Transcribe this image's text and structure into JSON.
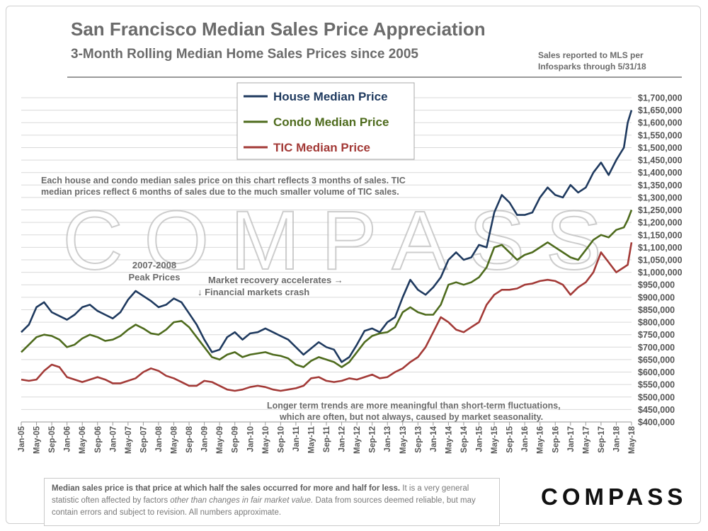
{
  "header": {
    "title": "San Francisco Median Sales Price Appreciation",
    "subtitle": "3-Month Rolling Median Home Sales Prices since 2005",
    "source_line1": "Sales reported to MLS per",
    "source_line2": "Infosparks through 5/31/18"
  },
  "annotations": {
    "note_line1": "Each house and condo median sales price on this chart reflects 3 months of sales. TIC",
    "note_line2": "median prices reflect 6 months of sales due to the much smaller volume of TIC sales.",
    "peak_line1": "2007-2008",
    "peak_line2": "Peak Prices",
    "recovery": "Market recovery accelerates →",
    "crash": "↓ Financial markets crash",
    "trend_line1": "Longer term trends are more meaningful than short-term fluctuations,",
    "trend_line2": "which are often, but not always, caused by market seasonality."
  },
  "watermark": "COMPASS",
  "footer": {
    "bold_text": "Median sales price is that price at which half the sales occurred for more and half for less.",
    "text_a": " It is a very general statistic often affected by factors ",
    "italic_text": "other than changes in fair market value.",
    "text_b": " Data from sources deemed reliable, but may contain errors and subject to revision. All numbers approximate."
  },
  "logo": "COMPASS",
  "chart_data": {
    "type": "line",
    "ylim": [
      400000,
      1700000
    ],
    "yticks": [
      "$400,000",
      "$450,000",
      "$500,000",
      "$550,000",
      "$600,000",
      "$650,000",
      "$700,000",
      "$750,000",
      "$800,000",
      "$850,000",
      "$900,000",
      "$950,000",
      "$1,000,000",
      "$1,050,000",
      "$1,100,000",
      "$1,150,000",
      "$1,200,000",
      "$1,250,000",
      "$1,300,000",
      "$1,350,000",
      "$1,400,000",
      "$1,450,000",
      "$1,500,000",
      "$1,550,000",
      "$1,600,000",
      "$1,650,000",
      "$1,700,000"
    ],
    "xticks": [
      "Jan-05",
      "May-05",
      "Sep-05",
      "Jan-06",
      "May-06",
      "Sep-06",
      "Jan-07",
      "May-07",
      "Sep-07",
      "Jan-08",
      "May-08",
      "Sep-08",
      "Jan-09",
      "May-09",
      "Sep-09",
      "Jan-10",
      "May-10",
      "Sep-10",
      "Jan-11",
      "May-11",
      "Sep-11",
      "Jan-12",
      "May-12",
      "Sep-12",
      "Jan-13",
      "May-13",
      "Sep-13",
      "Jan-14",
      "May-14",
      "Sep-14",
      "Jan-15",
      "May-15",
      "Sep-15",
      "Jan-16",
      "May-16",
      "Sep-16",
      "Jan-17",
      "May-17",
      "Sep-17",
      "Jan-18",
      "May-18"
    ],
    "grid": true,
    "legend_position": "top-center",
    "series": [
      {
        "name": "House Median Price",
        "color": "#1f3a5f",
        "x": [
          "Jan-05",
          "Mar-05",
          "May-05",
          "Jul-05",
          "Sep-05",
          "Nov-05",
          "Jan-06",
          "Mar-06",
          "May-06",
          "Jul-06",
          "Sep-06",
          "Nov-06",
          "Jan-07",
          "Mar-07",
          "May-07",
          "Jul-07",
          "Sep-07",
          "Nov-07",
          "Jan-08",
          "Mar-08",
          "May-08",
          "Jul-08",
          "Sep-08",
          "Nov-08",
          "Jan-09",
          "Mar-09",
          "May-09",
          "Jul-09",
          "Sep-09",
          "Nov-09",
          "Jan-10",
          "Mar-10",
          "May-10",
          "Jul-10",
          "Sep-10",
          "Nov-10",
          "Jan-11",
          "Mar-11",
          "May-11",
          "Jul-11",
          "Sep-11",
          "Nov-11",
          "Jan-12",
          "Mar-12",
          "May-12",
          "Jul-12",
          "Sep-12",
          "Nov-12",
          "Jan-13",
          "Mar-13",
          "May-13",
          "Jul-13",
          "Sep-13",
          "Nov-13",
          "Jan-14",
          "Mar-14",
          "May-14",
          "Jul-14",
          "Sep-14",
          "Nov-14",
          "Jan-15",
          "Mar-15",
          "May-15",
          "Jul-15",
          "Sep-15",
          "Nov-15",
          "Jan-16",
          "Mar-16",
          "May-16",
          "Jul-16",
          "Sep-16",
          "Nov-16",
          "Jan-17",
          "Mar-17",
          "May-17",
          "Jul-17",
          "Sep-17",
          "Nov-17",
          "Jan-18",
          "Mar-18",
          "Apr-18",
          "May-18"
        ],
        "values": [
          760000,
          790000,
          860000,
          880000,
          840000,
          825000,
          810000,
          830000,
          860000,
          870000,
          845000,
          830000,
          815000,
          840000,
          890000,
          925000,
          905000,
          885000,
          860000,
          870000,
          895000,
          880000,
          835000,
          790000,
          730000,
          680000,
          690000,
          740000,
          760000,
          730000,
          755000,
          760000,
          775000,
          760000,
          745000,
          730000,
          700000,
          670000,
          695000,
          720000,
          700000,
          690000,
          640000,
          660000,
          710000,
          765000,
          775000,
          760000,
          800000,
          820000,
          900000,
          970000,
          930000,
          910000,
          940000,
          980000,
          1050000,
          1080000,
          1050000,
          1060000,
          1110000,
          1100000,
          1240000,
          1310000,
          1280000,
          1230000,
          1230000,
          1240000,
          1300000,
          1340000,
          1310000,
          1300000,
          1350000,
          1320000,
          1340000,
          1400000,
          1440000,
          1390000,
          1450000,
          1500000,
          1600000,
          1650000
        ]
      },
      {
        "name": "Condo Median Price",
        "color": "#4e6b1d",
        "x": [
          "Jan-05",
          "Mar-05",
          "May-05",
          "Jul-05",
          "Sep-05",
          "Nov-05",
          "Jan-06",
          "Mar-06",
          "May-06",
          "Jul-06",
          "Sep-06",
          "Nov-06",
          "Jan-07",
          "Mar-07",
          "May-07",
          "Jul-07",
          "Sep-07",
          "Nov-07",
          "Jan-08",
          "Mar-08",
          "May-08",
          "Jul-08",
          "Sep-08",
          "Nov-08",
          "Jan-09",
          "Mar-09",
          "May-09",
          "Jul-09",
          "Sep-09",
          "Nov-09",
          "Jan-10",
          "Mar-10",
          "May-10",
          "Jul-10",
          "Sep-10",
          "Nov-10",
          "Jan-11",
          "Mar-11",
          "May-11",
          "Jul-11",
          "Sep-11",
          "Nov-11",
          "Jan-12",
          "Mar-12",
          "May-12",
          "Jul-12",
          "Sep-12",
          "Nov-12",
          "Jan-13",
          "Mar-13",
          "May-13",
          "Jul-13",
          "Sep-13",
          "Nov-13",
          "Jan-14",
          "Mar-14",
          "May-14",
          "Jul-14",
          "Sep-14",
          "Nov-14",
          "Jan-15",
          "Mar-15",
          "May-15",
          "Jul-15",
          "Sep-15",
          "Nov-15",
          "Jan-16",
          "Mar-16",
          "May-16",
          "Jul-16",
          "Sep-16",
          "Nov-16",
          "Jan-17",
          "Mar-17",
          "May-17",
          "Jul-17",
          "Sep-17",
          "Nov-17",
          "Jan-18",
          "Mar-18",
          "Apr-18",
          "May-18"
        ],
        "values": [
          680000,
          710000,
          740000,
          750000,
          745000,
          730000,
          700000,
          710000,
          735000,
          750000,
          740000,
          725000,
          730000,
          745000,
          770000,
          790000,
          775000,
          755000,
          750000,
          770000,
          800000,
          805000,
          780000,
          740000,
          700000,
          660000,
          650000,
          670000,
          680000,
          660000,
          670000,
          675000,
          680000,
          670000,
          665000,
          655000,
          630000,
          620000,
          645000,
          660000,
          650000,
          640000,
          620000,
          640000,
          680000,
          720000,
          745000,
          755000,
          760000,
          780000,
          840000,
          860000,
          840000,
          830000,
          830000,
          870000,
          950000,
          960000,
          950000,
          960000,
          980000,
          1020000,
          1100000,
          1110000,
          1080000,
          1050000,
          1070000,
          1080000,
          1100000,
          1120000,
          1100000,
          1080000,
          1060000,
          1050000,
          1090000,
          1130000,
          1150000,
          1140000,
          1170000,
          1180000,
          1210000,
          1250000
        ]
      },
      {
        "name": "TIC Median Price",
        "color": "#a33a37",
        "x": [
          "Jan-05",
          "Mar-05",
          "May-05",
          "Jul-05",
          "Sep-05",
          "Nov-05",
          "Jan-06",
          "Mar-06",
          "May-06",
          "Jul-06",
          "Sep-06",
          "Nov-06",
          "Jan-07",
          "Mar-07",
          "May-07",
          "Jul-07",
          "Sep-07",
          "Nov-07",
          "Jan-08",
          "Mar-08",
          "May-08",
          "Jul-08",
          "Sep-08",
          "Nov-08",
          "Jan-09",
          "Mar-09",
          "May-09",
          "Jul-09",
          "Sep-09",
          "Nov-09",
          "Jan-10",
          "Mar-10",
          "May-10",
          "Jul-10",
          "Sep-10",
          "Nov-10",
          "Jan-11",
          "Mar-11",
          "May-11",
          "Jul-11",
          "Sep-11",
          "Nov-11",
          "Jan-12",
          "Mar-12",
          "May-12",
          "Jul-12",
          "Sep-12",
          "Nov-12",
          "Jan-13",
          "Mar-13",
          "May-13",
          "Jul-13",
          "Sep-13",
          "Nov-13",
          "Jan-14",
          "Mar-14",
          "May-14",
          "Jul-14",
          "Sep-14",
          "Nov-14",
          "Jan-15",
          "Mar-15",
          "May-15",
          "Jul-15",
          "Sep-15",
          "Nov-15",
          "Jan-16",
          "Mar-16",
          "May-16",
          "Jul-16",
          "Sep-16",
          "Nov-16",
          "Jan-17",
          "Mar-17",
          "May-17",
          "Jul-17",
          "Sep-17",
          "Nov-17",
          "Jan-18",
          "Mar-18",
          "Apr-18",
          "May-18"
        ],
        "values": [
          570000,
          565000,
          570000,
          605000,
          630000,
          620000,
          580000,
          570000,
          560000,
          570000,
          580000,
          570000,
          555000,
          555000,
          565000,
          575000,
          600000,
          615000,
          605000,
          585000,
          575000,
          560000,
          545000,
          545000,
          565000,
          560000,
          545000,
          530000,
          525000,
          530000,
          540000,
          545000,
          540000,
          530000,
          525000,
          530000,
          535000,
          545000,
          575000,
          580000,
          565000,
          560000,
          565000,
          575000,
          570000,
          580000,
          590000,
          575000,
          580000,
          600000,
          615000,
          640000,
          660000,
          700000,
          760000,
          820000,
          800000,
          770000,
          760000,
          780000,
          800000,
          870000,
          910000,
          930000,
          930000,
          935000,
          950000,
          955000,
          965000,
          970000,
          965000,
          950000,
          910000,
          940000,
          960000,
          1000000,
          1080000,
          1040000,
          1000000,
          1020000,
          1030000,
          1120000
        ]
      }
    ]
  }
}
